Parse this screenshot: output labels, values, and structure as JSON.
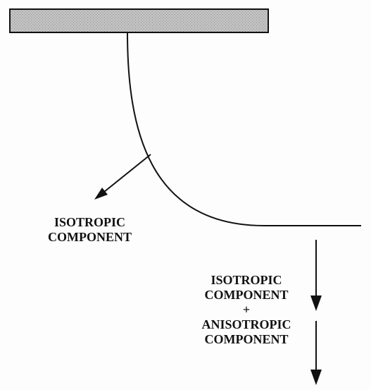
{
  "diagram": {
    "left_label": {
      "line1": "ISOTROPIC",
      "line2": "COMPONENT"
    },
    "right_label": {
      "line1": "ISOTROPIC",
      "line2": "COMPONENT",
      "plus": "+",
      "line3": "ANISOTROPIC",
      "line4": "COMPONENT"
    },
    "colors": {
      "ink": "#111111",
      "bar_fill": "#b5b5b5",
      "background": "#fdfdfd"
    }
  }
}
